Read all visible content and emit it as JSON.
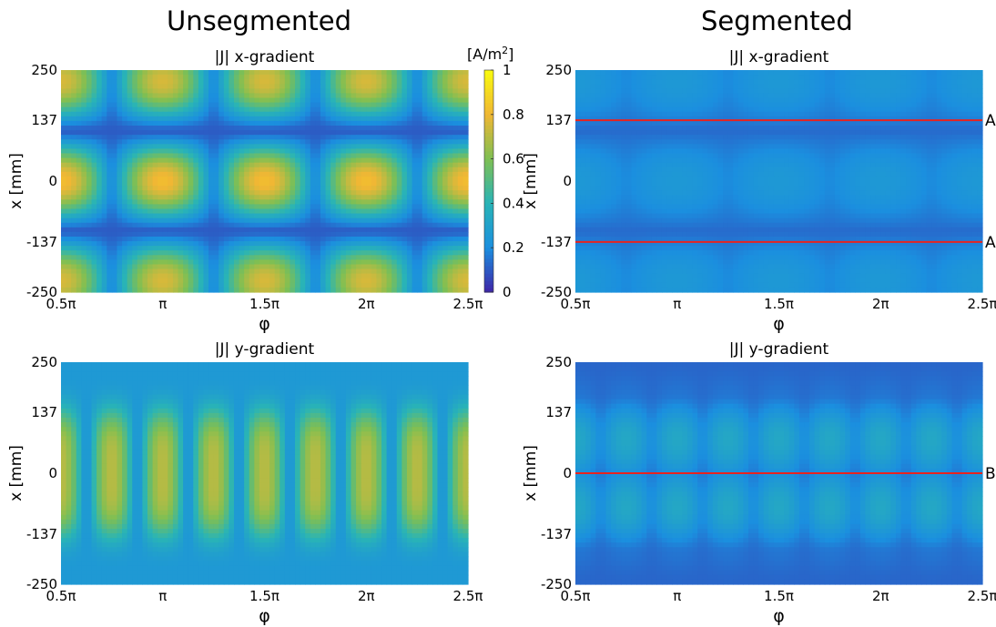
{
  "figure": {
    "column_titles": [
      "Unsegmented",
      "Segmented"
    ]
  },
  "colorbar": {
    "unit_prefix": "[A/m",
    "unit_sup": "2",
    "unit_suffix": "]",
    "ticks": [
      "1",
      "0.8",
      "0.6",
      "0.4",
      "0.2",
      "0"
    ],
    "colors": [
      "#3e26a8",
      "#1b8fdf",
      "#29b4b6",
      "#7fbf53",
      "#f0b734",
      "#f9fb0e"
    ]
  },
  "chart_data": [
    {
      "type": "heatmap",
      "title": "|J| x-gradient",
      "xlabel": "φ",
      "ylabel": "x [mm]",
      "xticks": [
        "0.5π",
        "π",
        "1.5π",
        "2π",
        "2.5π"
      ],
      "yticks": [
        "250",
        "137",
        "0",
        "-137",
        "-250"
      ],
      "xlim": [
        0.5,
        2.5
      ],
      "ylim": [
        -250,
        250
      ],
      "value_range": [
        0,
        1
      ],
      "colorbar": true,
      "pattern": "unseg-x",
      "lines": []
    },
    {
      "type": "heatmap",
      "title": "|J| x-gradient",
      "xlabel": "φ",
      "ylabel": "x [mm]",
      "xticks": [
        "0.5π",
        "π",
        "1.5π",
        "2π",
        "2.5π"
      ],
      "yticks": [
        "250",
        "137",
        "0",
        "-137",
        "-250"
      ],
      "xlim": [
        0.5,
        2.5
      ],
      "ylim": [
        -250,
        250
      ],
      "value_range": [
        0,
        1
      ],
      "colorbar": false,
      "pattern": "seg-x",
      "lines": [
        {
          "y": 137,
          "label": "A"
        },
        {
          "y": -137,
          "label": "A"
        }
      ]
    },
    {
      "type": "heatmap",
      "title": "|J| y-gradient",
      "xlabel": "φ",
      "ylabel": "x [mm]",
      "xticks": [
        "0.5π",
        "π",
        "1.5π",
        "2π",
        "2.5π"
      ],
      "yticks": [
        "250",
        "137",
        "0",
        "-137",
        "-250"
      ],
      "xlim": [
        0.5,
        2.5
      ],
      "ylim": [
        -250,
        250
      ],
      "value_range": [
        0,
        1
      ],
      "colorbar": false,
      "pattern": "unseg-y",
      "lines": []
    },
    {
      "type": "heatmap",
      "title": "|J| y-gradient",
      "xlabel": "φ",
      "ylabel": "x [mm]",
      "xticks": [
        "0.5π",
        "π",
        "1.5π",
        "2π",
        "2.5π"
      ],
      "yticks": [
        "250",
        "137",
        "0",
        "-137",
        "-250"
      ],
      "xlim": [
        0.5,
        2.5
      ],
      "ylim": [
        -250,
        250
      ],
      "value_range": [
        0,
        1
      ],
      "colorbar": false,
      "pattern": "seg-y",
      "lines": [
        {
          "y": 0,
          "label": "B"
        }
      ]
    }
  ]
}
